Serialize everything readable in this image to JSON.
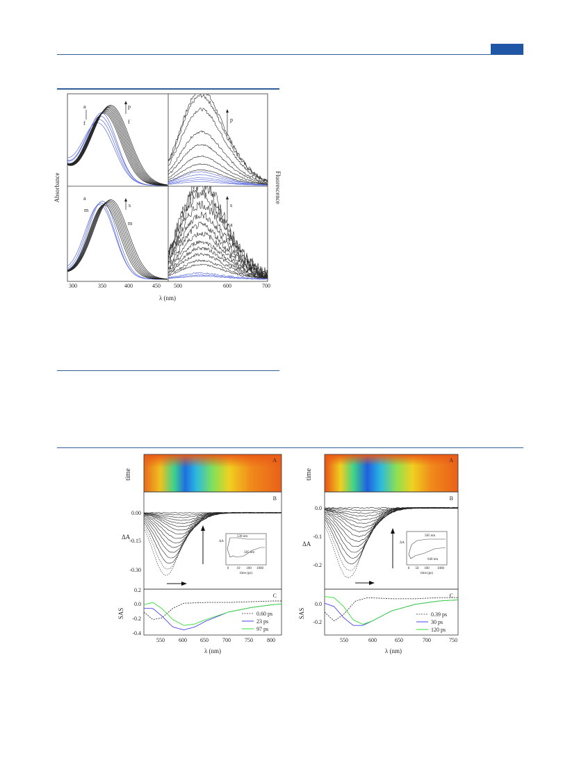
{
  "figure1": {
    "ylabel_left": "Absorbance",
    "ylabel_right": "Fluorescence",
    "xlabel": "λ (nm)",
    "xticks_left": [
      "300",
      "350",
      "400",
      "450"
    ],
    "xticks_right": [
      "500",
      "600",
      "700"
    ],
    "top_abs_markers": [
      "a",
      "f",
      "p",
      "f"
    ],
    "top_fluo_markers": [
      "p",
      "a"
    ],
    "bottom_abs_markers": [
      "a",
      "m",
      "s",
      "m"
    ],
    "bottom_fluo_markers": [
      "s",
      "a"
    ]
  },
  "figure2_left": {
    "panel_a_label": "A",
    "panel_a_ylabel": "time",
    "panel_b_label": "B",
    "panel_b_ylabel": "ΔA",
    "panel_b_yticks": [
      "0.00",
      "-0.15",
      "-0.30"
    ],
    "inset_ylabel": "ΔA",
    "inset_xlabel": "time (ps)",
    "inset_xticks": [
      "0",
      "10",
      "100",
      "1000"
    ],
    "inset_labels": [
      "530 nm",
      "585 nm"
    ],
    "panel_c_label": "C",
    "panel_c_ylabel": "SAS",
    "panel_c_yticks": [
      "0.2",
      "0.0",
      "-0.2",
      "-0.4"
    ],
    "xlabel": "λ (nm)",
    "xticks": [
      "550",
      "600",
      "650",
      "700",
      "750",
      "800"
    ],
    "legend": [
      "0.60 ps",
      "23 ps",
      "97 ps"
    ]
  },
  "figure2_right": {
    "panel_a_label": "A",
    "panel_a_ylabel": "time",
    "panel_b_label": "B",
    "panel_b_ylabel": "ΔA",
    "panel_b_yticks": [
      "0.0",
      "-0.1",
      "-0.2"
    ],
    "inset_ylabel": "ΔA",
    "inset_xlabel": "time (ps)",
    "inset_xticks": [
      "0",
      "50",
      "100",
      "1000"
    ],
    "inset_labels": [
      "585 nm",
      "640 nm"
    ],
    "panel_c_label": "C",
    "panel_c_ylabel": "SAS",
    "panel_c_yticks": [
      "0.0",
      "-0.2"
    ],
    "xlabel": "λ (nm)",
    "xticks": [
      "550",
      "600",
      "650",
      "700",
      "750"
    ],
    "legend": [
      "0.39 ps",
      "30 ps",
      "120 ps"
    ]
  },
  "colors": {
    "rule": "#2f5d9a",
    "tab": "#1f56a5",
    "black_trace": "#222222",
    "blue_trace": "#5566dd",
    "sas_blue": "#4444ee",
    "sas_green": "#33dd33"
  },
  "chart_data": [
    {
      "type": "line",
      "title": "",
      "xlabel": "λ (nm)",
      "ylabel": "Absorbance / Fluorescence",
      "xlim": [
        285,
        700
      ],
      "series": [
        {
          "x": [
            300,
            320,
            340,
            355,
            365,
            380,
            400,
            420,
            440,
            460
          ],
          "y": [
            0.3,
            0.5,
            0.78,
            0.92,
            0.95,
            0.86,
            0.55,
            0.25,
            0.08,
            0.02
          ]
        },
        {
          "x": [
            300,
            320,
            340,
            350,
            360,
            380,
            400,
            420,
            440,
            460
          ],
          "y": [
            0.35,
            0.6,
            0.9,
            0.98,
            0.95,
            0.78,
            0.42,
            0.15,
            0.04,
            0.01
          ]
        },
        {
          "x": [
            480,
            500,
            520,
            540,
            560,
            580,
            600,
            640,
            680,
            700
          ],
          "y": [
            0.05,
            0.4,
            0.8,
            0.98,
            0.9,
            0.72,
            0.5,
            0.2,
            0.06,
            0.03
          ]
        },
        {
          "x": [
            480,
            500,
            520,
            540,
            560,
            580,
            600,
            640,
            680,
            700
          ],
          "y": [
            0.01,
            0.05,
            0.1,
            0.12,
            0.11,
            0.09,
            0.06,
            0.03,
            0.01,
            0.0
          ]
        }
      ]
    },
    {
      "type": "line",
      "title": "",
      "xlabel": "λ (nm)",
      "ylabel": "SAS",
      "xlim": [
        510,
        820
      ],
      "ylim": [
        -0.4,
        0.2
      ],
      "series": [
        {
          "name": "0.60 ps",
          "x": [
            510,
            530,
            550,
            575,
            600,
            650,
            700,
            750,
            800,
            820
          ],
          "y": [
            -0.1,
            -0.2,
            -0.18,
            -0.05,
            0.02,
            0.03,
            0.03,
            0.04,
            0.05,
            0.05
          ]
        },
        {
          "name": "23 ps",
          "x": [
            510,
            530,
            550,
            575,
            600,
            625,
            650,
            700,
            750,
            800,
            820
          ],
          "y": [
            -0.05,
            -0.05,
            -0.15,
            -0.3,
            -0.34,
            -0.3,
            -0.22,
            -0.1,
            -0.04,
            0.0,
            0.01
          ]
        },
        {
          "name": "97 ps",
          "x": [
            510,
            530,
            550,
            575,
            600,
            625,
            650,
            700,
            750,
            800,
            820
          ],
          "y": [
            0.0,
            0.03,
            -0.05,
            -0.2,
            -0.28,
            -0.26,
            -0.2,
            -0.1,
            -0.04,
            0.0,
            0.01
          ]
        }
      ]
    },
    {
      "type": "line",
      "title": "",
      "xlabel": "λ (nm)",
      "ylabel": "SAS",
      "xlim": [
        510,
        790
      ],
      "ylim": [
        -0.3,
        0.1
      ],
      "series": [
        {
          "name": "0.39 ps",
          "x": [
            510,
            530,
            550,
            575,
            600,
            650,
            700,
            750,
            790
          ],
          "y": [
            -0.1,
            -0.18,
            -0.12,
            0.0,
            0.03,
            0.02,
            0.02,
            0.03,
            0.03
          ]
        },
        {
          "name": "30 ps",
          "x": [
            510,
            530,
            550,
            570,
            590,
            610,
            650,
            700,
            750,
            790
          ],
          "y": [
            -0.02,
            -0.05,
            -0.15,
            -0.22,
            -0.22,
            -0.18,
            -0.09,
            -0.03,
            0.0,
            0.01
          ]
        },
        {
          "name": "120 ps",
          "x": [
            510,
            530,
            550,
            570,
            590,
            610,
            650,
            700,
            750,
            790
          ],
          "y": [
            0.04,
            0.03,
            -0.05,
            -0.17,
            -0.21,
            -0.18,
            -0.09,
            -0.03,
            0.0,
            0.01
          ]
        }
      ]
    }
  ]
}
